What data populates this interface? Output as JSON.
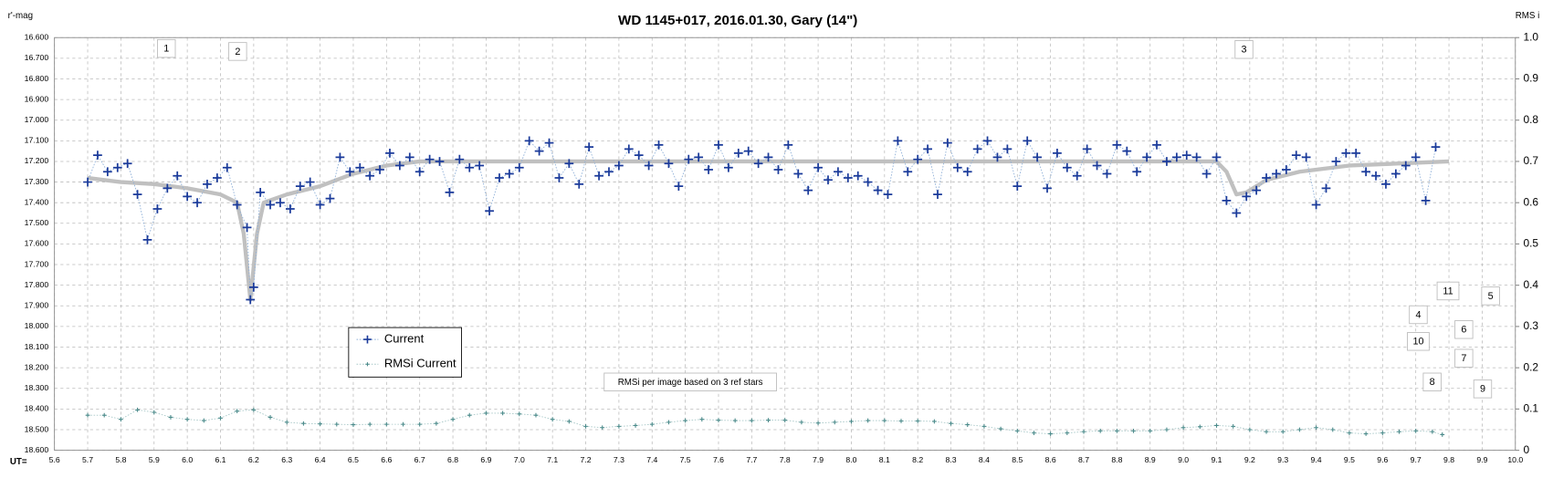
{
  "chart_data": {
    "type": "scatter",
    "title": "WD 1145+017, 2016.01.30,  Gary (14\")",
    "y_label": "r'-mag",
    "y2_label": "RMS i",
    "x_label": "UT=",
    "xlim": [
      5.6,
      10.0
    ],
    "ylim": [
      18.6,
      16.6
    ],
    "y2lim": [
      0,
      1.0
    ],
    "grid": true,
    "xticks": [
      5.6,
      5.7,
      5.8,
      5.9,
      {
        "value": 6,
        "label": "6.0"
      },
      6.1,
      6.2,
      6.3,
      6.4,
      6.5,
      6.6,
      6.7,
      6.8,
      6.9,
      {
        "value": 7,
        "label": "7.0"
      },
      7.1,
      7.2,
      7.3,
      7.4,
      7.5,
      7.6,
      7.7,
      7.8,
      7.9,
      {
        "value": 8,
        "label": "8.0"
      },
      8.1,
      8.2,
      8.3,
      8.4,
      8.5,
      8.6,
      8.7,
      8.8,
      8.9,
      {
        "value": 9,
        "label": "9.0"
      },
      9.1,
      9.2,
      9.3,
      9.4,
      9.5,
      9.6,
      9.7,
      9.8,
      9.9,
      {
        "value": 10,
        "label": "10.0"
      }
    ],
    "yticks": [
      {
        "value": 16.6,
        "label": "16.600"
      },
      {
        "value": 16.7,
        "label": "16.700"
      },
      {
        "value": 16.8,
        "label": "16.800"
      },
      {
        "value": 16.9,
        "label": "16.900"
      },
      {
        "value": 17.0,
        "label": "17.000"
      },
      {
        "value": 17.1,
        "label": "17.100"
      },
      {
        "value": 17.2,
        "label": "17.200"
      },
      {
        "value": 17.3,
        "label": "17.300"
      },
      {
        "value": 17.4,
        "label": "17.400"
      },
      {
        "value": 17.5,
        "label": "17.500"
      },
      {
        "value": 17.6,
        "label": "17.600"
      },
      {
        "value": 17.7,
        "label": "17.700"
      },
      {
        "value": 17.8,
        "label": "17.800"
      },
      {
        "value": 17.9,
        "label": "17.900"
      },
      {
        "value": 18.0,
        "label": "18.000"
      },
      {
        "value": 18.1,
        "label": "18.100"
      },
      {
        "value": 18.2,
        "label": "18.200"
      },
      {
        "value": 18.3,
        "label": "18.300"
      },
      {
        "value": 18.4,
        "label": "18.400"
      },
      {
        "value": 18.5,
        "label": "18.500"
      },
      {
        "value": 18.6,
        "label": "18.600"
      }
    ],
    "y2ticks": [
      0,
      0.1,
      0.2,
      0.3,
      0.4,
      0.5,
      0.6,
      0.7,
      0.8,
      0.9,
      {
        "value": 1,
        "label": "1.0"
      }
    ],
    "series": [
      {
        "name": "Current",
        "color": "#1a3a9a",
        "line_color": "#8fb0d8",
        "x": [
          5.7,
          5.73,
          5.76,
          5.79,
          5.82,
          5.85,
          5.88,
          5.91,
          5.94,
          5.97,
          6.0,
          6.03,
          6.06,
          6.09,
          6.12,
          6.15,
          6.18,
          6.19,
          6.2,
          6.22,
          6.25,
          6.28,
          6.31,
          6.34,
          6.37,
          6.4,
          6.43,
          6.46,
          6.49,
          6.52,
          6.55,
          6.58,
          6.61,
          6.64,
          6.67,
          6.7,
          6.73,
          6.76,
          6.79,
          6.82,
          6.85,
          6.88,
          6.91,
          6.94,
          6.97,
          7.0,
          7.03,
          7.06,
          7.09,
          7.12,
          7.15,
          7.18,
          7.21,
          7.24,
          7.27,
          7.3,
          7.33,
          7.36,
          7.39,
          7.42,
          7.45,
          7.48,
          7.51,
          7.54,
          7.57,
          7.6,
          7.63,
          7.66,
          7.69,
          7.72,
          7.75,
          7.78,
          7.81,
          7.84,
          7.87,
          7.9,
          7.93,
          7.96,
          7.99,
          8.02,
          8.05,
          8.08,
          8.11,
          8.14,
          8.17,
          8.2,
          8.23,
          8.26,
          8.29,
          8.32,
          8.35,
          8.38,
          8.41,
          8.44,
          8.47,
          8.5,
          8.53,
          8.56,
          8.59,
          8.62,
          8.65,
          8.68,
          8.71,
          8.74,
          8.77,
          8.8,
          8.83,
          8.86,
          8.89,
          8.92,
          8.95,
          8.98,
          9.01,
          9.04,
          9.07,
          9.1,
          9.13,
          9.16,
          9.19,
          9.22,
          9.25,
          9.28,
          9.31,
          9.34,
          9.37,
          9.4,
          9.43,
          9.46,
          9.49,
          9.52,
          9.55,
          9.58,
          9.61,
          9.64,
          9.67,
          9.7,
          9.73,
          9.76
        ],
        "values": [
          17.3,
          17.17,
          17.25,
          17.23,
          17.21,
          17.36,
          17.58,
          17.43,
          17.33,
          17.27,
          17.37,
          17.4,
          17.31,
          17.28,
          17.23,
          17.41,
          17.52,
          17.87,
          17.81,
          17.35,
          17.41,
          17.4,
          17.43,
          17.32,
          17.3,
          17.41,
          17.38,
          17.18,
          17.25,
          17.23,
          17.27,
          17.24,
          17.16,
          17.22,
          17.18,
          17.25,
          17.19,
          17.2,
          17.35,
          17.19,
          17.23,
          17.22,
          17.44,
          17.28,
          17.26,
          17.23,
          17.1,
          17.15,
          17.11,
          17.28,
          17.21,
          17.31,
          17.13,
          17.27,
          17.25,
          17.22,
          17.14,
          17.17,
          17.22,
          17.12,
          17.21,
          17.32,
          17.19,
          17.18,
          17.24,
          17.12,
          17.23,
          17.16,
          17.15,
          17.21,
          17.18,
          17.24,
          17.12,
          17.26,
          17.34,
          17.23,
          17.29,
          17.25,
          17.28,
          17.27,
          17.3,
          17.34,
          17.36,
          17.1,
          17.25,
          17.19,
          17.14,
          17.36,
          17.11,
          17.23,
          17.25,
          17.14,
          17.1,
          17.18,
          17.14,
          17.32,
          17.1,
          17.18,
          17.33,
          17.16,
          17.23,
          17.27,
          17.14,
          17.22,
          17.26,
          17.12,
          17.15,
          17.25,
          17.18,
          17.12,
          17.2,
          17.18,
          17.17,
          17.18,
          17.26,
          17.18,
          17.39,
          17.45,
          17.37,
          17.34,
          17.28,
          17.26,
          17.24,
          17.17,
          17.18,
          17.41,
          17.33,
          17.2,
          17.16,
          17.16,
          17.25,
          17.27,
          17.31,
          17.26,
          17.22,
          17.18,
          17.39,
          17.13
        ]
      },
      {
        "name": "RMSi Current",
        "color": "#4a8a8a",
        "line_color": "#a8c8c8",
        "axis": "y2",
        "x": [
          5.7,
          5.75,
          5.8,
          5.85,
          5.9,
          5.95,
          6.0,
          6.05,
          6.1,
          6.15,
          6.2,
          6.25,
          6.3,
          6.35,
          6.4,
          6.45,
          6.5,
          6.55,
          6.6,
          6.65,
          6.7,
          6.75,
          6.8,
          6.85,
          6.9,
          6.95,
          7.0,
          7.05,
          7.1,
          7.15,
          7.2,
          7.25,
          7.3,
          7.35,
          7.4,
          7.45,
          7.5,
          7.55,
          7.6,
          7.65,
          7.7,
          7.75,
          7.8,
          7.85,
          7.9,
          7.95,
          8.0,
          8.05,
          8.1,
          8.15,
          8.2,
          8.25,
          8.3,
          8.35,
          8.4,
          8.45,
          8.5,
          8.55,
          8.6,
          8.65,
          8.7,
          8.75,
          8.8,
          8.85,
          8.9,
          8.95,
          9.0,
          9.05,
          9.1,
          9.15,
          9.2,
          9.25,
          9.3,
          9.35,
          9.4,
          9.45,
          9.5,
          9.55,
          9.6,
          9.65,
          9.7,
          9.75,
          9.78
        ],
        "values": [
          0.085,
          0.085,
          0.075,
          0.098,
          0.092,
          0.08,
          0.075,
          0.072,
          0.078,
          0.095,
          0.098,
          0.08,
          0.068,
          0.065,
          0.064,
          0.063,
          0.062,
          0.063,
          0.063,
          0.063,
          0.063,
          0.065,
          0.075,
          0.085,
          0.09,
          0.09,
          0.088,
          0.085,
          0.075,
          0.07,
          0.058,
          0.055,
          0.058,
          0.06,
          0.063,
          0.068,
          0.072,
          0.075,
          0.073,
          0.072,
          0.072,
          0.073,
          0.073,
          0.068,
          0.066,
          0.068,
          0.07,
          0.072,
          0.072,
          0.071,
          0.071,
          0.07,
          0.065,
          0.062,
          0.058,
          0.052,
          0.047,
          0.042,
          0.04,
          0.042,
          0.045,
          0.047,
          0.047,
          0.047,
          0.047,
          0.05,
          0.055,
          0.057,
          0.06,
          0.058,
          0.05,
          0.045,
          0.045,
          0.05,
          0.055,
          0.05,
          0.042,
          0.04,
          0.042,
          0.045,
          0.047,
          0.045,
          0.038
        ]
      }
    ],
    "model": {
      "color": "#c0c0c0",
      "x": [
        5.7,
        5.8,
        5.9,
        6.0,
        6.1,
        6.15,
        6.17,
        6.19,
        6.21,
        6.23,
        6.3,
        6.4,
        6.5,
        6.6,
        6.7,
        6.8,
        7.0,
        7.5,
        8.0,
        8.5,
        9.1,
        9.13,
        9.16,
        9.19,
        9.25,
        9.35,
        9.5,
        9.65,
        9.8
      ],
      "values": [
        17.28,
        17.3,
        17.31,
        17.33,
        17.36,
        17.4,
        17.55,
        17.87,
        17.55,
        17.4,
        17.36,
        17.32,
        17.26,
        17.22,
        17.2,
        17.2,
        17.2,
        17.2,
        17.2,
        17.2,
        17.2,
        17.25,
        17.36,
        17.35,
        17.29,
        17.25,
        17.22,
        17.21,
        17.2
      ]
    },
    "annotations": [
      "1",
      "2",
      "3",
      "11",
      "5",
      "4",
      "6",
      "10",
      "7",
      "8",
      "9",
      "RMSi per image based on 3 ref stars"
    ]
  }
}
